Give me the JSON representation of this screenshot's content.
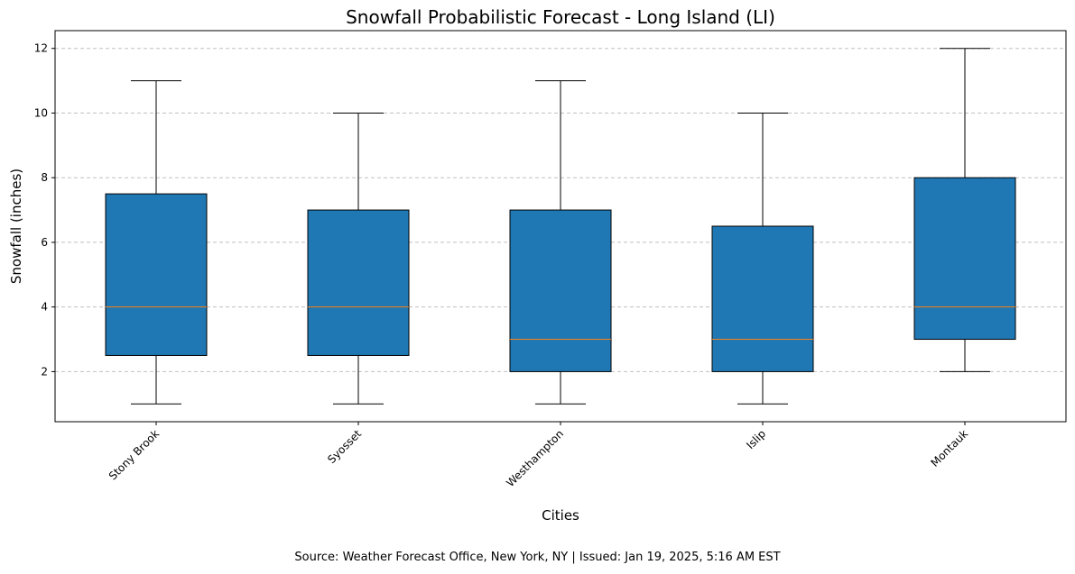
{
  "chart_data": {
    "type": "box",
    "title": "Snowfall Probabilistic Forecast - Long Island (LI)",
    "xlabel": "Cities",
    "ylabel": "Snowfall (inches)",
    "ylim": [
      0.45,
      12.55
    ],
    "yticks": [
      2,
      4,
      6,
      8,
      10,
      12
    ],
    "grid": "y-dashed",
    "categories": [
      "Stony Brook",
      "Syosset",
      "Westhampton",
      "Islip",
      "Montauk"
    ],
    "boxes": [
      {
        "whisker_low": 1,
        "q1": 2.5,
        "median": 4,
        "q3": 7.5,
        "whisker_high": 11
      },
      {
        "whisker_low": 1,
        "q1": 2.5,
        "median": 4,
        "q3": 7.0,
        "whisker_high": 10
      },
      {
        "whisker_low": 1,
        "q1": 2.0,
        "median": 3,
        "q3": 7.0,
        "whisker_high": 11
      },
      {
        "whisker_low": 1,
        "q1": 2.0,
        "median": 3,
        "q3": 6.5,
        "whisker_high": 10
      },
      {
        "whisker_low": 2,
        "q1": 3.0,
        "median": 4,
        "q3": 8.0,
        "whisker_high": 12
      }
    ],
    "colors": {
      "box_fill": "#1f77b4",
      "median": "#ff7f0e",
      "edge": "#000000",
      "grid": "#c0c0c0"
    }
  },
  "footer": {
    "source": "Source: Weather Forecast Office, New York, NY | Issued: Jan 19, 2025, 5:16 AM EST"
  }
}
